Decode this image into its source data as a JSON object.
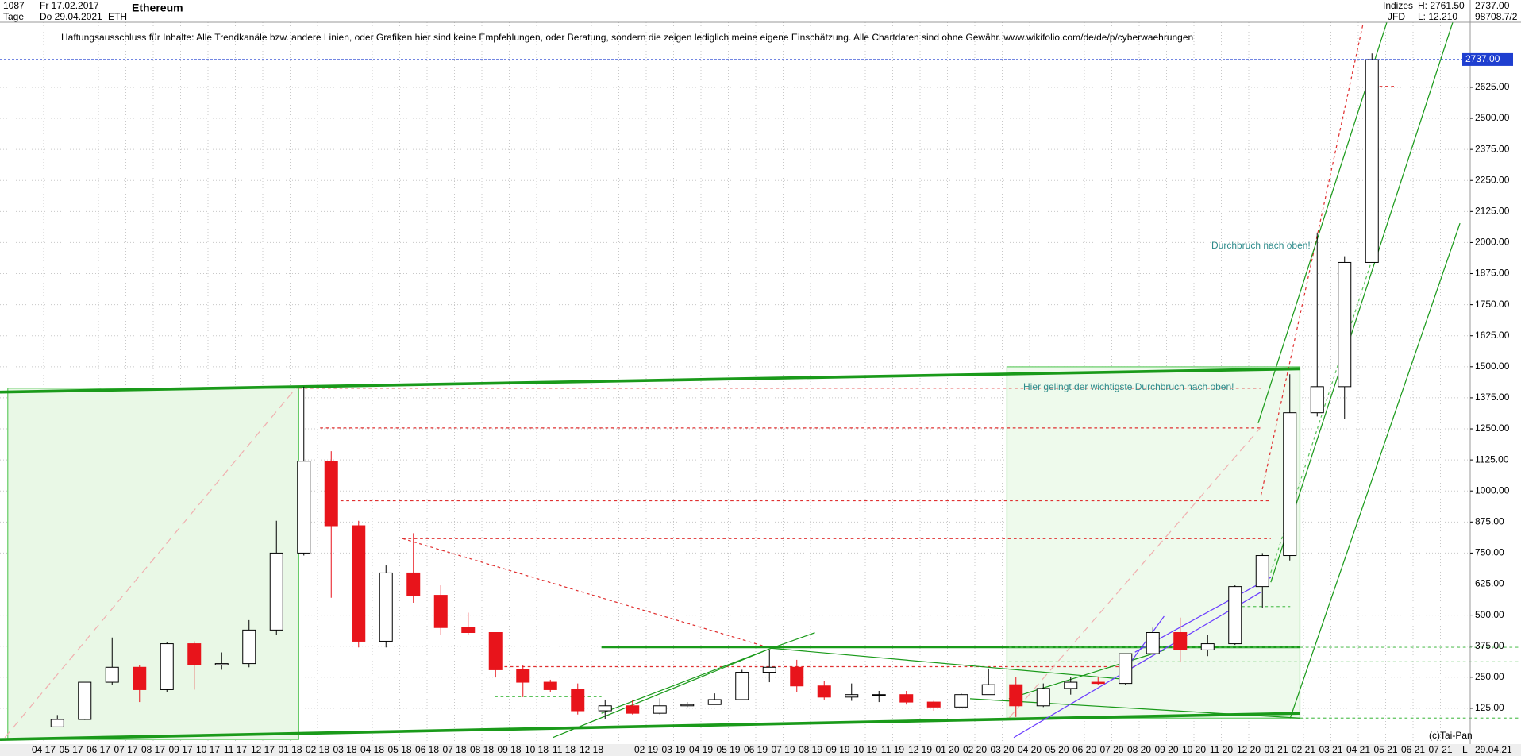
{
  "header": {
    "count": "1087",
    "start_date": "Fr 17.02.2017",
    "period": "Tage",
    "end_date": "Do 29.04.2021",
    "symbol": "ETH",
    "name": "Ethereum",
    "market": "Indizes",
    "broker": "JFD",
    "high": "H: 2761.50",
    "low": "L: 12.210",
    "last": "2737.00",
    "volume": "98708.7/2",
    "disclaimer": "Haftungsausschluss für Inhalte: Alle Trendkanäle bzw. andere Linien, oder Grafiken hier sind keine Empfehlungen, oder Beratung, sondern die zeigen lediglich meine eigene Einschätzung. Alle Chartdaten sind ohne Gewähr.  www.wikifolio.com/de/de/p/cyberwaehrungen",
    "copyright": "(c)Tai-Pan",
    "footer_date": "29.04.21",
    "scale_mode": "L"
  },
  "chart_data": {
    "type": "candlestick",
    "categories": [
      "04 17",
      "05 17",
      "06 17",
      "07 17",
      "08 17",
      "09 17",
      "10 17",
      "11 17",
      "12 17",
      "01 18",
      "02 18",
      "03 18",
      "04 18",
      "05 18",
      "06 18",
      "07 18",
      "08 18",
      "09 18",
      "10 18",
      "11 18",
      "12 18",
      null,
      "02 19",
      "03 19",
      "04 19",
      "05 19",
      "06 19",
      "07 19",
      "08 19",
      "09 19",
      "10 19",
      "11 19",
      "12 19",
      "01 20",
      "02 20",
      "03 20",
      "04 20",
      "05 20",
      "06 20",
      "07 20",
      "08 20",
      "09 20",
      "10 20",
      "11 20",
      "12 20",
      "01 21",
      "02 21",
      "03 21",
      "04 21",
      "05 21",
      "06 21",
      "07 21"
    ],
    "open": [
      50,
      80,
      230,
      290,
      200,
      385,
      300,
      305,
      440,
      750,
      1120,
      860,
      395,
      670,
      580,
      450,
      430,
      280,
      230,
      200,
      115,
      135,
      105,
      135,
      140,
      160,
      270,
      290,
      215,
      170,
      180,
      180,
      150,
      130,
      180,
      220,
      135,
      205,
      230,
      225,
      345,
      430,
      360,
      385,
      615,
      740,
      1315,
      1420,
      1920,
      null,
      null,
      null
    ],
    "high": [
      98,
      230,
      410,
      300,
      390,
      395,
      350,
      480,
      880,
      1420,
      1160,
      880,
      700,
      830,
      620,
      510,
      430,
      300,
      240,
      225,
      160,
      160,
      165,
      150,
      185,
      280,
      360,
      320,
      235,
      225,
      195,
      195,
      155,
      185,
      285,
      250,
      225,
      250,
      250,
      340,
      450,
      490,
      420,
      620,
      750,
      1470,
      2040,
      1945,
      2761.5,
      null,
      null,
      null
    ],
    "low": [
      48,
      78,
      220,
      150,
      190,
      200,
      280,
      290,
      420,
      740,
      570,
      370,
      370,
      550,
      420,
      420,
      250,
      170,
      190,
      100,
      80,
      100,
      100,
      130,
      140,
      160,
      230,
      190,
      160,
      155,
      150,
      140,
      115,
      125,
      180,
      90,
      130,
      180,
      220,
      220,
      340,
      310,
      335,
      380,
      530,
      720,
      1300,
      1290,
      1930,
      null,
      null,
      null
    ],
    "close": [
      80,
      230,
      290,
      200,
      385,
      300,
      305,
      440,
      750,
      1120,
      860,
      395,
      670,
      580,
      450,
      430,
      280,
      230,
      200,
      115,
      135,
      105,
      135,
      140,
      160,
      270,
      290,
      215,
      170,
      180,
      180,
      150,
      130,
      180,
      220,
      135,
      205,
      230,
      225,
      345,
      430,
      360,
      385,
      615,
      740,
      1315,
      1420,
      1920,
      2737,
      null,
      null,
      null
    ],
    "colors": {
      "up": "#ffffff",
      "down": "#e8141b",
      "wick": "#000000"
    },
    "ylim": [
      -16,
      2887
    ],
    "yticks": [
      {
        "value": 125,
        "label": "125.00"
      },
      {
        "value": 250,
        "label": "250.00"
      },
      {
        "value": 375,
        "label": "375.00"
      },
      {
        "value": 500,
        "label": "500.00"
      },
      {
        "value": 625,
        "label": "625.00"
      },
      {
        "value": 750,
        "label": "750.00"
      },
      {
        "value": 875,
        "label": "875.00"
      },
      {
        "value": 1000,
        "label": "1000.00"
      },
      {
        "value": 1125,
        "label": "1125.00"
      },
      {
        "value": 1250,
        "label": "1250.00"
      },
      {
        "value": 1375,
        "label": "1375.00"
      },
      {
        "value": 1500,
        "label": "1500.00"
      },
      {
        "value": 1625,
        "label": "1625.00"
      },
      {
        "value": 1750,
        "label": "1750.00"
      },
      {
        "value": 1875,
        "label": "1875.00"
      },
      {
        "value": 2000,
        "label": "2000.00"
      },
      {
        "value": 2125,
        "label": "2125.00"
      },
      {
        "value": 2250,
        "label": "2250.00"
      },
      {
        "value": 2375,
        "label": "2375.00"
      },
      {
        "value": 2500,
        "label": "2500.00"
      },
      {
        "value": 2625,
        "label": "2625.00"
      }
    ],
    "last_price": {
      "value": 2737,
      "label": "2737.00",
      "color": "#1f3fd0"
    },
    "grid": true,
    "annotations": [
      "Durchbruch nach oben!",
      "Hier gelingt der wichtigste Durchbruch nach oben!"
    ]
  }
}
